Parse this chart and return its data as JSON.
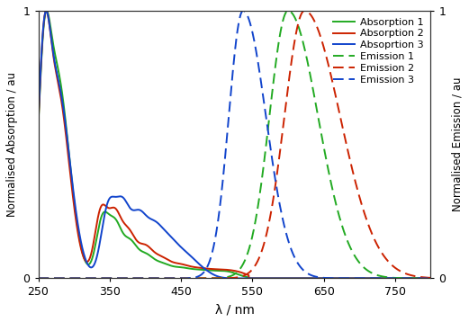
{
  "xlim": [
    250,
    800
  ],
  "ylim": [
    0,
    1
  ],
  "xlabel": "λ / nm",
  "ylabel_left": "Normalised Absorption / au",
  "ylabel_right": "Normalised Emission / au",
  "xticks": [
    250,
    350,
    450,
    550,
    650,
    750
  ],
  "colors": {
    "green": "#22aa22",
    "red": "#cc2200",
    "blue": "#1144cc"
  },
  "legend_labels": [
    "Absorption 1",
    "Absorption 2",
    "Absoprtion 3",
    "Emission 1",
    "Emission 2",
    "Emission 3"
  ],
  "background_color": "#ffffff",
  "line_width": 1.4
}
